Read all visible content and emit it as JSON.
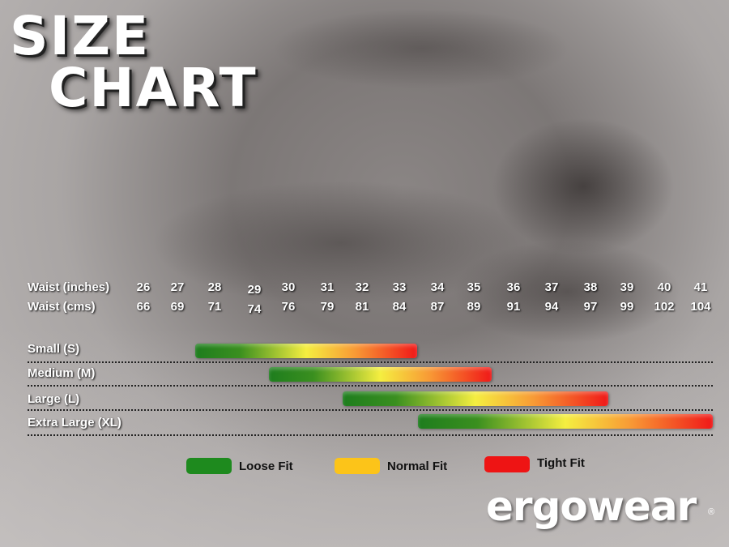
{
  "title": {
    "line1": "SIZE",
    "line2": "CHART"
  },
  "chart_data": {
    "type": "range-bar",
    "rows": [
      {
        "label": "Waist (inches)",
        "values": [
          "26",
          "27",
          "28",
          "29",
          "30",
          "31",
          "32",
          "33",
          "34",
          "35",
          "36",
          "37",
          "38",
          "39",
          "40",
          "41"
        ]
      },
      {
        "label": "Waist (cms)",
        "values": [
          "66",
          "69",
          "71",
          "74",
          "76",
          "79",
          "81",
          "84",
          "87",
          "89",
          "91",
          "94",
          "97",
          "99",
          "102",
          "104"
        ]
      }
    ],
    "sizes": [
      {
        "label": "Small (S)",
        "start_inches": 28,
        "end_inches": 33
      },
      {
        "label": "Medium (M)",
        "start_inches": 30,
        "end_inches": 35
      },
      {
        "label": "Large (L)",
        "start_inches": 32,
        "end_inches": 38
      },
      {
        "label": "Extra Large (XL)",
        "start_inches": 34,
        "end_inches": 41
      }
    ],
    "legend": [
      {
        "label": "Loose Fit",
        "color": "#1e8a1e"
      },
      {
        "label": "Normal Fit",
        "color": "#fcc419"
      },
      {
        "label": "Tight Fit",
        "color": "#ee1414"
      }
    ]
  },
  "brand": {
    "logo": "ergowear",
    "registered": "®"
  }
}
